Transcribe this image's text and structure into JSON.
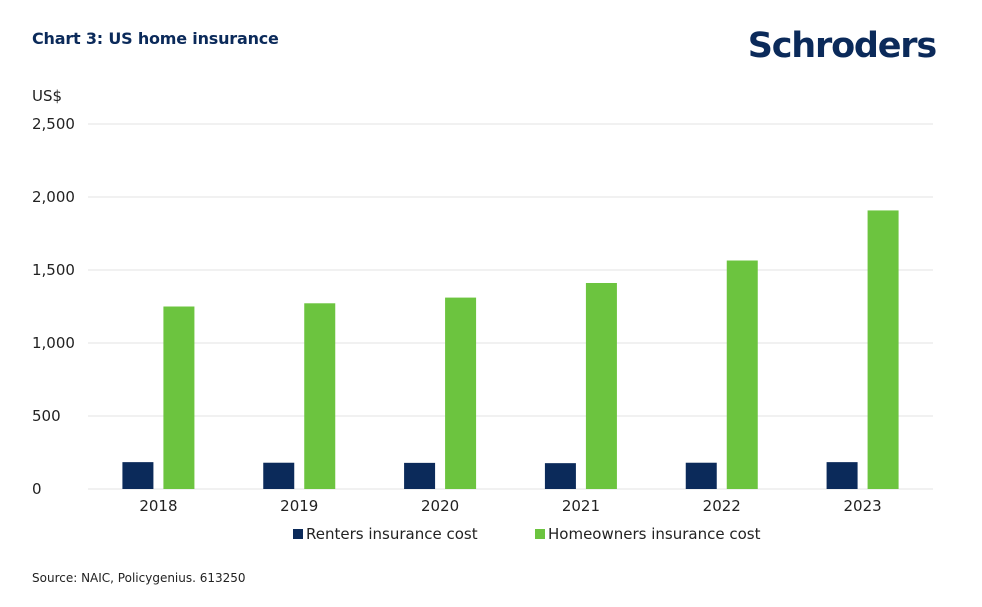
{
  "title": "Chart 3: US home insurance",
  "logo_text": "Schroders",
  "source": "Source: NAIC, Policygenius. 613250",
  "colors": {
    "renters": "#0b2a5a",
    "homeowners": "#6cc43f",
    "grid": "#e3e3e3",
    "text": "#222222"
  },
  "chart_data": {
    "type": "bar",
    "ylabel": "US$",
    "xlabel": "",
    "ylim": [
      0,
      2500
    ],
    "yticks": [
      0,
      500,
      1000,
      1500,
      2000,
      2500
    ],
    "ytick_labels": [
      "0",
      "500",
      "1,000",
      "1,500",
      "2,000",
      "2,500"
    ],
    "categories": [
      "2018",
      "2019",
      "2020",
      "2021",
      "2022",
      "2023"
    ],
    "series": [
      {
        "name": "Renters insurance cost",
        "values": [
          184,
          180,
          179,
          177,
          180,
          184
        ]
      },
      {
        "name": "Homeowners insurance cost",
        "values": [
          1250,
          1272,
          1311,
          1411,
          1565,
          1908
        ]
      }
    ],
    "grid": true,
    "legend": "bottom-center"
  }
}
